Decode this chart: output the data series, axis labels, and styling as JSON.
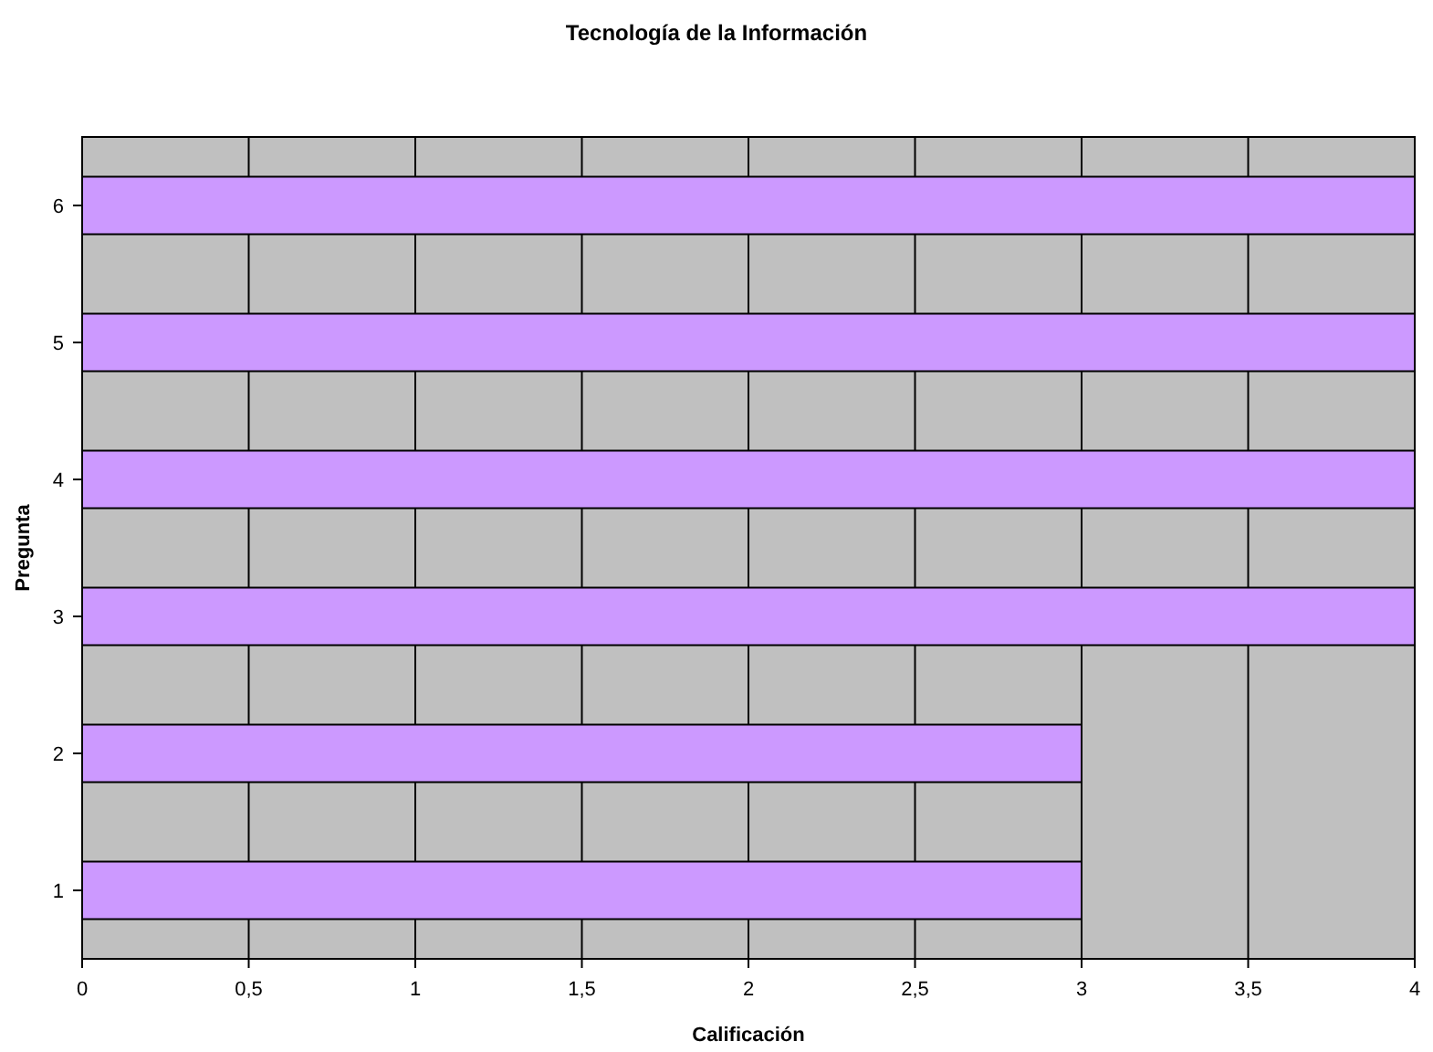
{
  "chart_data": {
    "type": "bar",
    "orientation": "horizontal",
    "title": "Tecnología de la Información",
    "xlabel": "Calificación",
    "ylabel": "Pregunta",
    "categories": [
      "6",
      "5",
      "4",
      "3",
      "2",
      "1"
    ],
    "values": [
      4,
      4,
      4,
      4,
      3,
      3
    ],
    "color": "#cc99ff",
    "xlim": [
      0,
      4
    ],
    "xticks": [
      0,
      {
        "value": 0.5,
        "label": "0,5"
      },
      1,
      {
        "value": 1.5,
        "label": "1,5"
      },
      2,
      {
        "value": 2.5,
        "label": "2,5"
      },
      3,
      {
        "value": 3.5,
        "label": "3,5"
      },
      4
    ],
    "grid": "x"
  }
}
